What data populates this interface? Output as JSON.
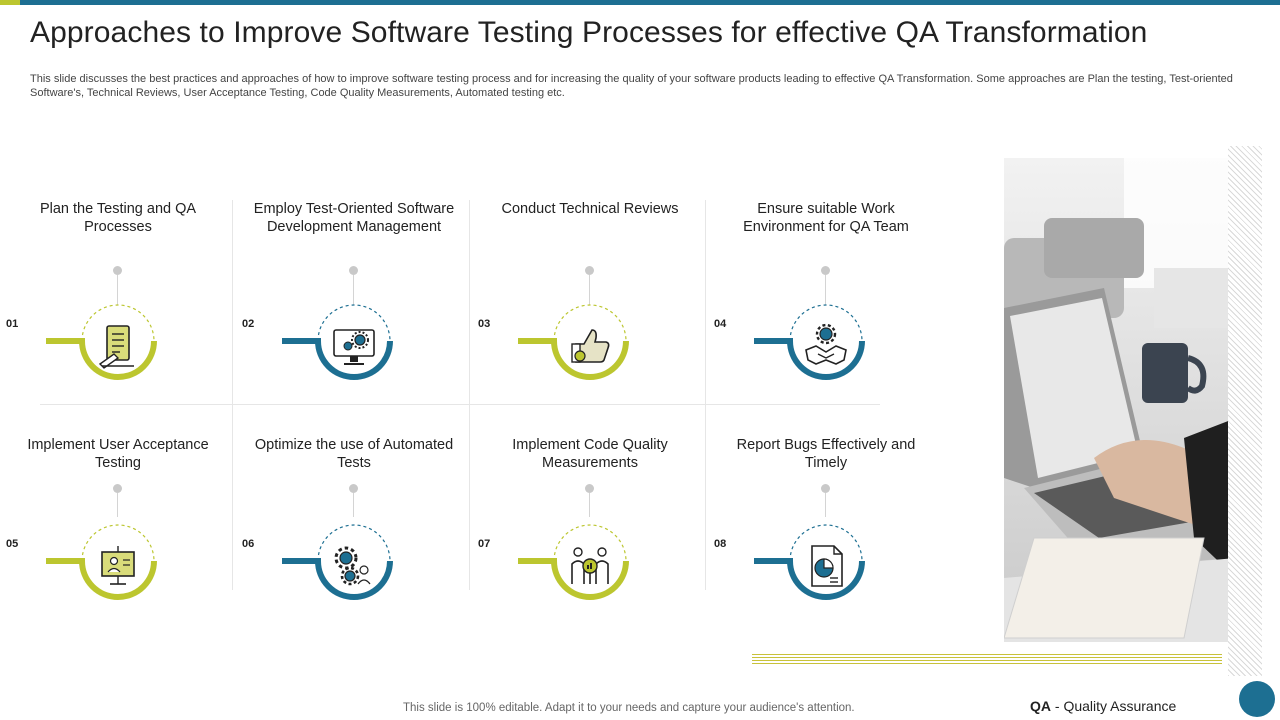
{
  "title": "Approaches to Improve Software Testing Processes for effective QA Transformation",
  "description": "This slide discusses the best practices and approaches of how to improve software testing process and for increasing the quality of your software products leading to effective QA Transformation. Some approaches are Plan the testing, Test-oriented Software's, Technical Reviews, User Acceptance Testing, Code Quality Measurements, Automated testing etc.",
  "colors": {
    "blue": "#1d6f92",
    "green": "#bcc62f"
  },
  "cards": [
    {
      "number": "01",
      "label": "Plan the Testing and QA Processes",
      "icon": "checklist-icon",
      "color": "green"
    },
    {
      "number": "02",
      "label": "Employ Test-Oriented Software Development Management",
      "icon": "monitor-gear-icon",
      "color": "blue"
    },
    {
      "number": "03",
      "label": "Conduct Technical Reviews",
      "icon": "thumbs-up-icon",
      "color": "green"
    },
    {
      "number": "04",
      "label": "Ensure suitable Work Environment for QA Team",
      "icon": "handshake-gear-icon",
      "color": "blue"
    },
    {
      "number": "05",
      "label": "Implement User Acceptance Testing",
      "icon": "user-presentation-icon",
      "color": "green"
    },
    {
      "number": "06",
      "label": "Optimize the use of Automated Tests",
      "icon": "gears-icon",
      "color": "blue"
    },
    {
      "number": "07",
      "label": "Implement Code Quality Measurements",
      "icon": "team-analytics-icon",
      "color": "green"
    },
    {
      "number": "08",
      "label": "Report Bugs Effectively and Timely",
      "icon": "report-chart-icon",
      "color": "blue"
    }
  ],
  "footer": "This slide is 100% editable. Adapt it to your needs and capture your audience's attention.",
  "qa_abbr": "QA",
  "qa_text": " - Quality Assurance"
}
